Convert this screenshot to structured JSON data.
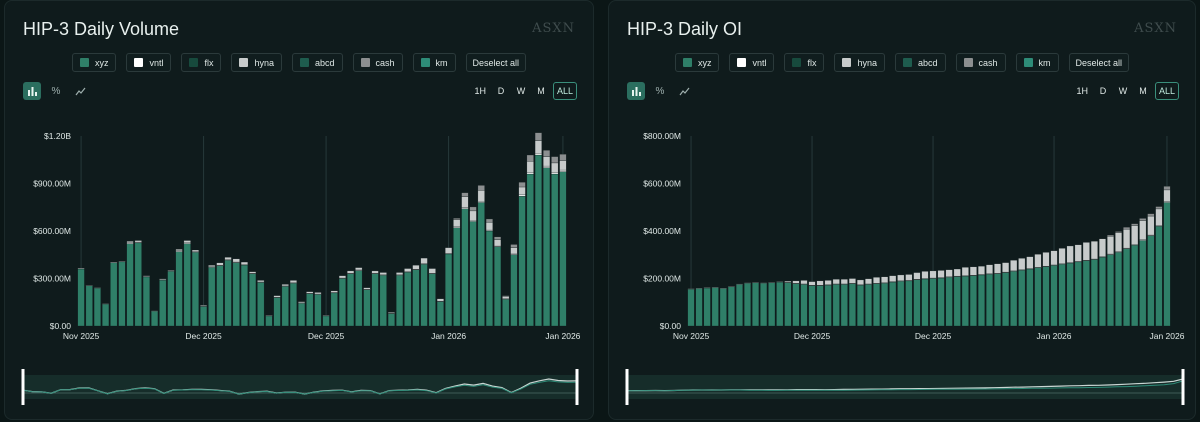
{
  "colors": {
    "xyz": "#2f7f68",
    "vntl": "#ffffff",
    "flx": "#174a3d",
    "hyna": "#c7cbcb",
    "abcd": "#1e5c4e",
    "cash": "#8c8f90",
    "km": "#2e8c78"
  },
  "legend_labels": [
    "xyz",
    "vntl",
    "flx",
    "hyna",
    "abcd",
    "cash",
    "km"
  ],
  "deselect_label": "Deselect all",
  "view_icons": [
    "bar-chart-icon",
    "percent-icon",
    "line-chart-icon"
  ],
  "ranges": [
    "1H",
    "D",
    "W",
    "M",
    "ALL"
  ],
  "active_range": "ALL",
  "panels": [
    {
      "title": "HIP-3 Daily Volume",
      "watermark": "ASXN"
    },
    {
      "title": "HIP-3 Daily OI",
      "watermark": "ASXN"
    }
  ],
  "chart_data": [
    {
      "type": "bar",
      "stacked": true,
      "title": "HIP-3 Daily Volume",
      "ylim": [
        0,
        1200000000
      ],
      "yticks": [
        "$0.00",
        "$300.00M",
        "$600.00M",
        "$900.00M",
        "$1.20B"
      ],
      "ytick_values": [
        0,
        300000000,
        600000000,
        900000000,
        1200000000
      ],
      "xticks": [
        "Nov 2025",
        "Dec 2025",
        "Dec 2025",
        "Jan 2026",
        "Jan 2026"
      ],
      "xtick_indices": [
        0,
        15,
        30,
        45,
        59
      ],
      "gridlines_at_indices": [
        0,
        15,
        30,
        45,
        59
      ],
      "series": [
        {
          "name": "xyz",
          "values": [
            360,
            255,
            240,
            140,
            400,
            405,
            520,
            525,
            310,
            95,
            290,
            345,
            470,
            520,
            465,
            125,
            370,
            380,
            415,
            400,
            385,
            330,
            275,
            65,
            180,
            250,
            270,
            145,
            205,
            200,
            65,
            210,
            300,
            330,
            350,
            230,
            330,
            320,
            80,
            320,
            340,
            355,
            390,
            330,
            155,
            455,
            620,
            740,
            660,
            780,
            600,
            500,
            170,
            450,
            820,
            960,
            1080,
            1000,
            960,
            975
          ]
        },
        {
          "name": "vntl",
          "values": [
            4,
            2,
            2,
            1,
            4,
            4,
            5,
            5,
            3,
            1,
            3,
            3,
            5,
            5,
            5,
            1,
            4,
            4,
            4,
            4,
            4,
            3,
            3,
            1,
            2,
            3,
            3,
            1,
            2,
            2,
            1,
            2,
            3,
            3,
            4,
            2,
            3,
            3,
            1,
            3,
            3,
            4,
            4,
            3,
            2,
            5,
            6,
            7,
            7,
            8,
            6,
            5,
            2,
            5,
            8,
            10,
            11,
            10,
            10,
            10
          ]
        },
        {
          "name": "flx",
          "values": [
            0,
            0,
            0,
            0,
            0,
            0,
            0,
            0,
            0,
            0,
            0,
            0,
            0,
            0,
            0,
            0,
            0,
            0,
            0,
            0,
            0,
            0,
            0,
            0,
            0,
            0,
            0,
            0,
            0,
            0,
            0,
            0,
            0,
            0,
            0,
            0,
            0,
            0,
            0,
            0,
            0,
            0,
            0,
            0,
            0,
            0,
            0,
            0,
            0,
            0,
            0,
            0,
            0,
            0,
            0,
            0,
            0,
            0,
            0,
            0
          ]
        },
        {
          "name": "hyna",
          "values": [
            0,
            0,
            0,
            0,
            0,
            0,
            10,
            10,
            5,
            0,
            5,
            5,
            10,
            15,
            10,
            5,
            10,
            15,
            15,
            20,
            15,
            10,
            10,
            3,
            10,
            10,
            15,
            8,
            10,
            10,
            3,
            10,
            15,
            15,
            15,
            10,
            15,
            15,
            5,
            15,
            20,
            25,
            35,
            30,
            15,
            35,
            45,
            70,
            60,
            70,
            50,
            40,
            15,
            40,
            50,
            70,
            80,
            60,
            60,
            60
          ]
        },
        {
          "name": "abcd",
          "values": [
            0,
            0,
            0,
            0,
            0,
            0,
            0,
            0,
            0,
            0,
            0,
            0,
            0,
            0,
            0,
            0,
            0,
            0,
            0,
            0,
            0,
            0,
            0,
            0,
            0,
            0,
            0,
            0,
            0,
            0,
            0,
            0,
            0,
            0,
            0,
            0,
            0,
            0,
            0,
            0,
            0,
            0,
            0,
            0,
            0,
            0,
            0,
            0,
            0,
            0,
            0,
            0,
            0,
            0,
            0,
            0,
            0,
            0,
            0,
            0
          ]
        },
        {
          "name": "cash",
          "values": [
            0,
            0,
            0,
            0,
            0,
            0,
            0,
            0,
            0,
            0,
            0,
            0,
            0,
            0,
            0,
            0,
            0,
            0,
            0,
            0,
            0,
            0,
            0,
            0,
            0,
            0,
            0,
            0,
            0,
            0,
            0,
            0,
            0,
            0,
            0,
            0,
            0,
            0,
            0,
            0,
            0,
            0,
            0,
            0,
            0,
            0,
            10,
            25,
            25,
            30,
            20,
            18,
            5,
            20,
            30,
            40,
            50,
            40,
            40,
            40
          ]
        },
        {
          "name": "km",
          "values": [
            0,
            0,
            0,
            0,
            0,
            0,
            0,
            0,
            0,
            0,
            0,
            0,
            0,
            0,
            0,
            0,
            0,
            0,
            0,
            0,
            0,
            0,
            0,
            0,
            0,
            0,
            0,
            0,
            0,
            0,
            0,
            0,
            0,
            0,
            0,
            0,
            0,
            0,
            0,
            0,
            0,
            0,
            0,
            0,
            0,
            0,
            0,
            0,
            0,
            0,
            0,
            0,
            0,
            0,
            0,
            0,
            0,
            0,
            0,
            0
          ]
        }
      ],
      "value_unit": "M"
    },
    {
      "type": "bar",
      "stacked": true,
      "title": "HIP-3 Daily OI",
      "ylim": [
        0,
        800000000
      ],
      "yticks": [
        "$0.00",
        "$200.00M",
        "$400.00M",
        "$600.00M",
        "$800.00M"
      ],
      "ytick_values": [
        0,
        200000000,
        400000000,
        600000000,
        800000000
      ],
      "xticks": [
        "Nov 2025",
        "Dec 2025",
        "Dec 2025",
        "Jan 2026",
        "Jan 2026"
      ],
      "xtick_indices": [
        0,
        15,
        30,
        45,
        59
      ],
      "gridlines_at_indices": [
        0,
        15,
        30,
        45,
        59
      ],
      "series": [
        {
          "name": "xyz",
          "values": [
            155,
            158,
            160,
            162,
            158,
            165,
            175,
            180,
            182,
            180,
            182,
            185,
            182,
            178,
            175,
            170,
            170,
            172,
            175,
            175,
            178,
            172,
            175,
            178,
            180,
            185,
            188,
            190,
            195,
            198,
            200,
            202,
            205,
            208,
            210,
            212,
            215,
            218,
            220,
            225,
            230,
            235,
            240,
            245,
            250,
            255,
            260,
            265,
            270,
            275,
            280,
            290,
            300,
            310,
            325,
            340,
            360,
            380,
            420,
            520
          ]
        },
        {
          "name": "vntl",
          "values": [
            2,
            2,
            2,
            2,
            2,
            2,
            2,
            2,
            2,
            2,
            2,
            2,
            2,
            2,
            2,
            2,
            2,
            2,
            2,
            2,
            2,
            2,
            2,
            2,
            2,
            2,
            2,
            2,
            2,
            2,
            2,
            2,
            2,
            2,
            2,
            2,
            2,
            2,
            2,
            2,
            2,
            2,
            2,
            2,
            2,
            2,
            2,
            2,
            2,
            2,
            2,
            2,
            3,
            3,
            3,
            3,
            3,
            3,
            3,
            3
          ]
        },
        {
          "name": "flx",
          "values": [
            0,
            0,
            0,
            0,
            0,
            0,
            0,
            0,
            0,
            0,
            0,
            0,
            0,
            0,
            0,
            0,
            0,
            0,
            0,
            0,
            0,
            0,
            0,
            0,
            0,
            0,
            0,
            0,
            0,
            0,
            0,
            0,
            0,
            0,
            0,
            0,
            0,
            0,
            0,
            0,
            0,
            0,
            0,
            0,
            0,
            0,
            0,
            0,
            0,
            0,
            0,
            0,
            0,
            0,
            0,
            0,
            0,
            0,
            0,
            0
          ]
        },
        {
          "name": "hyna",
          "values": [
            0,
            0,
            0,
            0,
            0,
            0,
            0,
            0,
            0,
            0,
            0,
            0,
            5,
            10,
            15,
            15,
            18,
            18,
            20,
            20,
            20,
            20,
            22,
            25,
            25,
            25,
            25,
            25,
            28,
            30,
            30,
            30,
            30,
            30,
            35,
            35,
            35,
            38,
            40,
            40,
            45,
            48,
            50,
            55,
            58,
            60,
            65,
            70,
            70,
            75,
            75,
            75,
            75,
            80,
            80,
            80,
            80,
            80,
            70,
            50
          ]
        },
        {
          "name": "abcd",
          "values": [
            0,
            0,
            0,
            0,
            0,
            0,
            0,
            0,
            0,
            0,
            0,
            0,
            0,
            0,
            0,
            0,
            0,
            0,
            0,
            0,
            0,
            0,
            0,
            0,
            0,
            0,
            0,
            0,
            0,
            0,
            0,
            0,
            0,
            0,
            0,
            0,
            0,
            0,
            0,
            0,
            0,
            0,
            0,
            0,
            0,
            0,
            0,
            0,
            0,
            0,
            0,
            0,
            0,
            0,
            0,
            0,
            0,
            0,
            0,
            0
          ]
        },
        {
          "name": "cash",
          "values": [
            0,
            0,
            0,
            0,
            0,
            0,
            0,
            0,
            0,
            0,
            0,
            0,
            0,
            0,
            0,
            0,
            0,
            0,
            0,
            0,
            0,
            0,
            0,
            0,
            0,
            0,
            0,
            0,
            0,
            0,
            0,
            0,
            0,
            0,
            0,
            0,
            0,
            0,
            0,
            0,
            0,
            0,
            0,
            0,
            0,
            0,
            0,
            0,
            0,
            0,
            0,
            0,
            5,
            5,
            8,
            8,
            10,
            10,
            10,
            15
          ]
        },
        {
          "name": "km",
          "values": [
            0,
            0,
            0,
            0,
            0,
            0,
            0,
            0,
            0,
            0,
            0,
            0,
            0,
            0,
            0,
            0,
            0,
            0,
            0,
            0,
            0,
            0,
            0,
            0,
            0,
            0,
            0,
            0,
            0,
            0,
            0,
            0,
            0,
            0,
            0,
            0,
            0,
            0,
            0,
            0,
            0,
            0,
            0,
            0,
            0,
            0,
            0,
            0,
            0,
            0,
            0,
            0,
            0,
            0,
            0,
            0,
            0,
            0,
            0,
            0
          ]
        }
      ],
      "value_unit": "M"
    }
  ]
}
